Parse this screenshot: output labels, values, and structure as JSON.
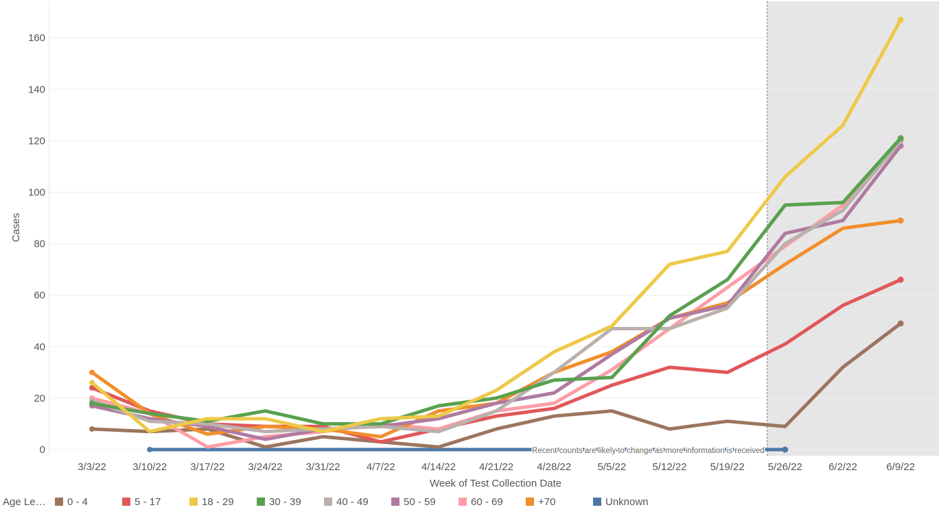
{
  "chart_data": {
    "type": "line",
    "xlabel": "Week of Test Collection Date",
    "ylabel": "Cases",
    "ylim": [
      -2,
      172
    ],
    "yticks": [
      0,
      20,
      40,
      60,
      80,
      100,
      120,
      140,
      160
    ],
    "categories": [
      "3/3/22",
      "3/10/22",
      "3/17/22",
      "3/24/22",
      "3/31/22",
      "4/7/22",
      "4/14/22",
      "4/21/22",
      "4/28/22",
      "5/5/22",
      "5/12/22",
      "5/19/22",
      "5/26/22",
      "6/2/22",
      "6/9/22"
    ],
    "shaded_region": {
      "from_category": "5/26/22",
      "annotation": "Recent counts are likely to change as more information is received"
    },
    "legend_title": "Age Le…",
    "series": [
      {
        "name": "Unknown",
        "color": "#4e79a7",
        "values": [
          null,
          0,
          0,
          0,
          0,
          0,
          0,
          0,
          0,
          0,
          0,
          0,
          0,
          null,
          null
        ]
      },
      {
        "name": "0 - 4",
        "color": "#9c755f",
        "values": [
          8,
          7,
          8,
          1,
          5,
          3,
          1,
          8,
          13,
          15,
          8,
          11,
          9,
          32,
          49
        ]
      },
      {
        "name": "5 - 17",
        "color": "#e15759",
        "values": [
          24,
          15,
          10,
          9,
          9,
          3,
          8,
          13,
          16,
          25,
          32,
          30,
          41,
          56,
          66
        ]
      },
      {
        "name": "60 - 69",
        "color": "#ff9da7",
        "values": [
          20,
          14,
          1,
          5,
          7,
          10,
          8,
          15,
          18,
          31,
          47,
          63,
          79,
          95,
          120
        ]
      },
      {
        "name": "+70",
        "color": "#f28e2b",
        "values": [
          30,
          14,
          6,
          9,
          8,
          5,
          15,
          18,
          30,
          38,
          51,
          57,
          72,
          86,
          89
        ]
      },
      {
        "name": "50 - 59",
        "color": "#b07aa1",
        "values": [
          17,
          12,
          9,
          4,
          8,
          9,
          12,
          18,
          22,
          37,
          51,
          56,
          84,
          89,
          118
        ]
      },
      {
        "name": "40 - 49",
        "color": "#bab0ac",
        "values": [
          19,
          11,
          10,
          7,
          8,
          9,
          7,
          15,
          30,
          47,
          47,
          55,
          80,
          93,
          120
        ]
      },
      {
        "name": "30 - 39",
        "color": "#59a14f",
        "values": [
          18,
          14,
          11,
          15,
          10,
          10,
          17,
          20,
          27,
          28,
          52,
          66,
          95,
          96,
          121
        ]
      },
      {
        "name": "18 - 29",
        "color": "#edc948",
        "values": [
          26,
          7,
          12,
          12,
          7,
          12,
          13,
          23,
          38,
          48,
          72,
          77,
          106,
          126,
          167
        ]
      }
    ],
    "legend": [
      {
        "name": "0 - 4",
        "color": "#9c755f"
      },
      {
        "name": "5 - 17",
        "color": "#e15759"
      },
      {
        "name": "18 - 29",
        "color": "#edc948"
      },
      {
        "name": "30 - 39",
        "color": "#59a14f"
      },
      {
        "name": "40 - 49",
        "color": "#bab0ac"
      },
      {
        "name": "50 - 59",
        "color": "#b07aa1"
      },
      {
        "name": "60 - 69",
        "color": "#ff9da7"
      },
      {
        "name": "+70",
        "color": "#f28e2b"
      },
      {
        "name": "Unknown",
        "color": "#4e79a7"
      }
    ]
  }
}
